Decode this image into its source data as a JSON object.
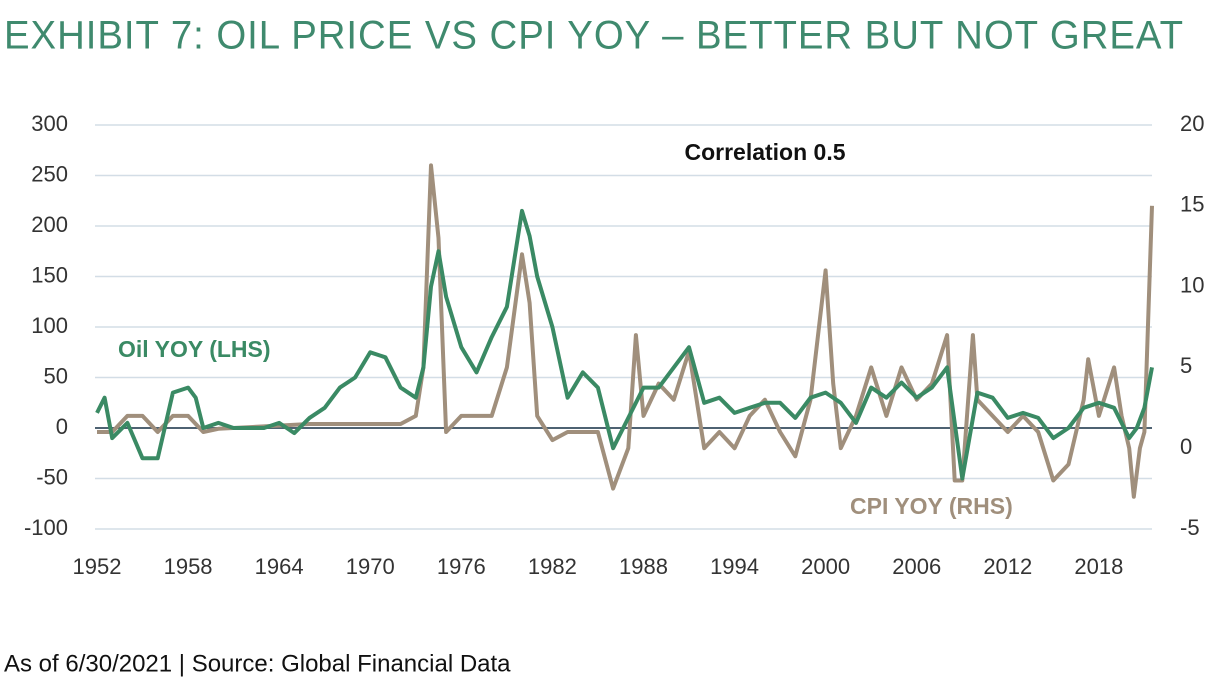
{
  "chart_data": {
    "type": "line",
    "title": "EXHIBIT 7: OIL PRICE VS CPI YOY – BETTER BUT NOT GREAT",
    "annotations": [
      "Correlation 0.5"
    ],
    "footnote": "As of 6/30/2021 | Source: Global Financial Data",
    "xlim": [
      1952,
      2021.5
    ],
    "xticks": [
      1952,
      1958,
      1964,
      1970,
      1976,
      1982,
      1988,
      1994,
      2000,
      2006,
      2012,
      2018
    ],
    "ylim": [
      -100,
      300
    ],
    "yticks": [
      -100,
      -50,
      0,
      50,
      100,
      150,
      200,
      250,
      300
    ],
    "y2lim": [
      -5,
      20
    ],
    "y2ticks": [
      -5,
      0,
      5,
      10,
      15,
      20
    ],
    "grid": true,
    "series": [
      {
        "name": "CPI YOY (RHS)",
        "color": "#a08f7c",
        "axis": "y2",
        "x": [
          1952,
          1953,
          1954,
          1955,
          1956,
          1957,
          1958,
          1959,
          1960,
          1966,
          1970,
          1972,
          1973,
          1973.5,
          1974,
          1974.5,
          1975,
          1976,
          1978,
          1979,
          1980,
          1980.5,
          1981,
          1982,
          1983,
          1985,
          1986,
          1987,
          1987.5,
          1988,
          1989,
          1990,
          1991,
          1992,
          1993,
          1994,
          1995,
          1996,
          1997,
          1998,
          1999,
          2000,
          2000.5,
          2001,
          2002,
          2003,
          2004,
          2005,
          2006,
          2007,
          2008,
          2008.5,
          2009,
          2009.7,
          2010,
          2011,
          2012,
          2013,
          2014,
          2015,
          2016,
          2017,
          2017.3,
          2018,
          2019,
          2019.5,
          2020,
          2020.3,
          2020.7,
          2021,
          2021.5
        ],
        "values": [
          1,
          1,
          2,
          2,
          1,
          2,
          2,
          1,
          1.2,
          1.5,
          1.5,
          1.5,
          2,
          5,
          17.5,
          13,
          1,
          2,
          2,
          5,
          12,
          9,
          2,
          0.5,
          1,
          1,
          -2.5,
          0,
          7,
          2,
          4,
          3,
          6,
          0,
          1,
          0,
          2,
          3,
          1,
          -0.5,
          3,
          11,
          4,
          0,
          2,
          5,
          2,
          5,
          3,
          4,
          7,
          -2,
          -2,
          7,
          3,
          2,
          1,
          2,
          1,
          -2,
          -1,
          3,
          5.5,
          2,
          5,
          2,
          0,
          -3,
          0,
          1,
          15
        ]
      },
      {
        "name": "Oil YOY (LHS)",
        "color": "#3a8a64",
        "x": [
          1952,
          1952.5,
          1953,
          1954,
          1955,
          1956,
          1957,
          1958,
          1958.5,
          1959,
          1960,
          1961,
          1962,
          1963,
          1964,
          1965,
          1966,
          1967,
          1968,
          1969,
          1970,
          1971,
          1972,
          1973,
          1973.5,
          1974,
          1974.5,
          1975,
          1976,
          1977,
          1978,
          1979,
          1980,
          1980.5,
          1981,
          1982,
          1983,
          1984,
          1985,
          1986,
          1987,
          1988,
          1989,
          1990,
          1991,
          1992,
          1993,
          1994,
          1995,
          1996,
          1997,
          1998,
          1999,
          2000,
          2001,
          2002,
          2003,
          2004,
          2005,
          2006,
          2007,
          2008,
          2009,
          2010,
          2011,
          2012,
          2013,
          2014,
          2015,
          2016,
          2017,
          2018,
          2019,
          2020,
          2020.5,
          2021,
          2021.5
        ],
        "values": [
          15,
          30,
          -10,
          5,
          -30,
          -30,
          35,
          40,
          30,
          0,
          5,
          0,
          0,
          0,
          5,
          -5,
          10,
          20,
          40,
          50,
          75,
          70,
          40,
          30,
          60,
          140,
          175,
          130,
          80,
          55,
          90,
          120,
          215,
          190,
          150,
          100,
          30,
          55,
          40,
          -20,
          10,
          40,
          40,
          60,
          80,
          25,
          30,
          15,
          20,
          25,
          25,
          10,
          30,
          35,
          25,
          5,
          40,
          30,
          45,
          30,
          40,
          60,
          -50,
          35,
          30,
          10,
          15,
          10,
          -10,
          0,
          20,
          25,
          20,
          -10,
          0,
          20,
          60
        ]
      }
    ]
  }
}
